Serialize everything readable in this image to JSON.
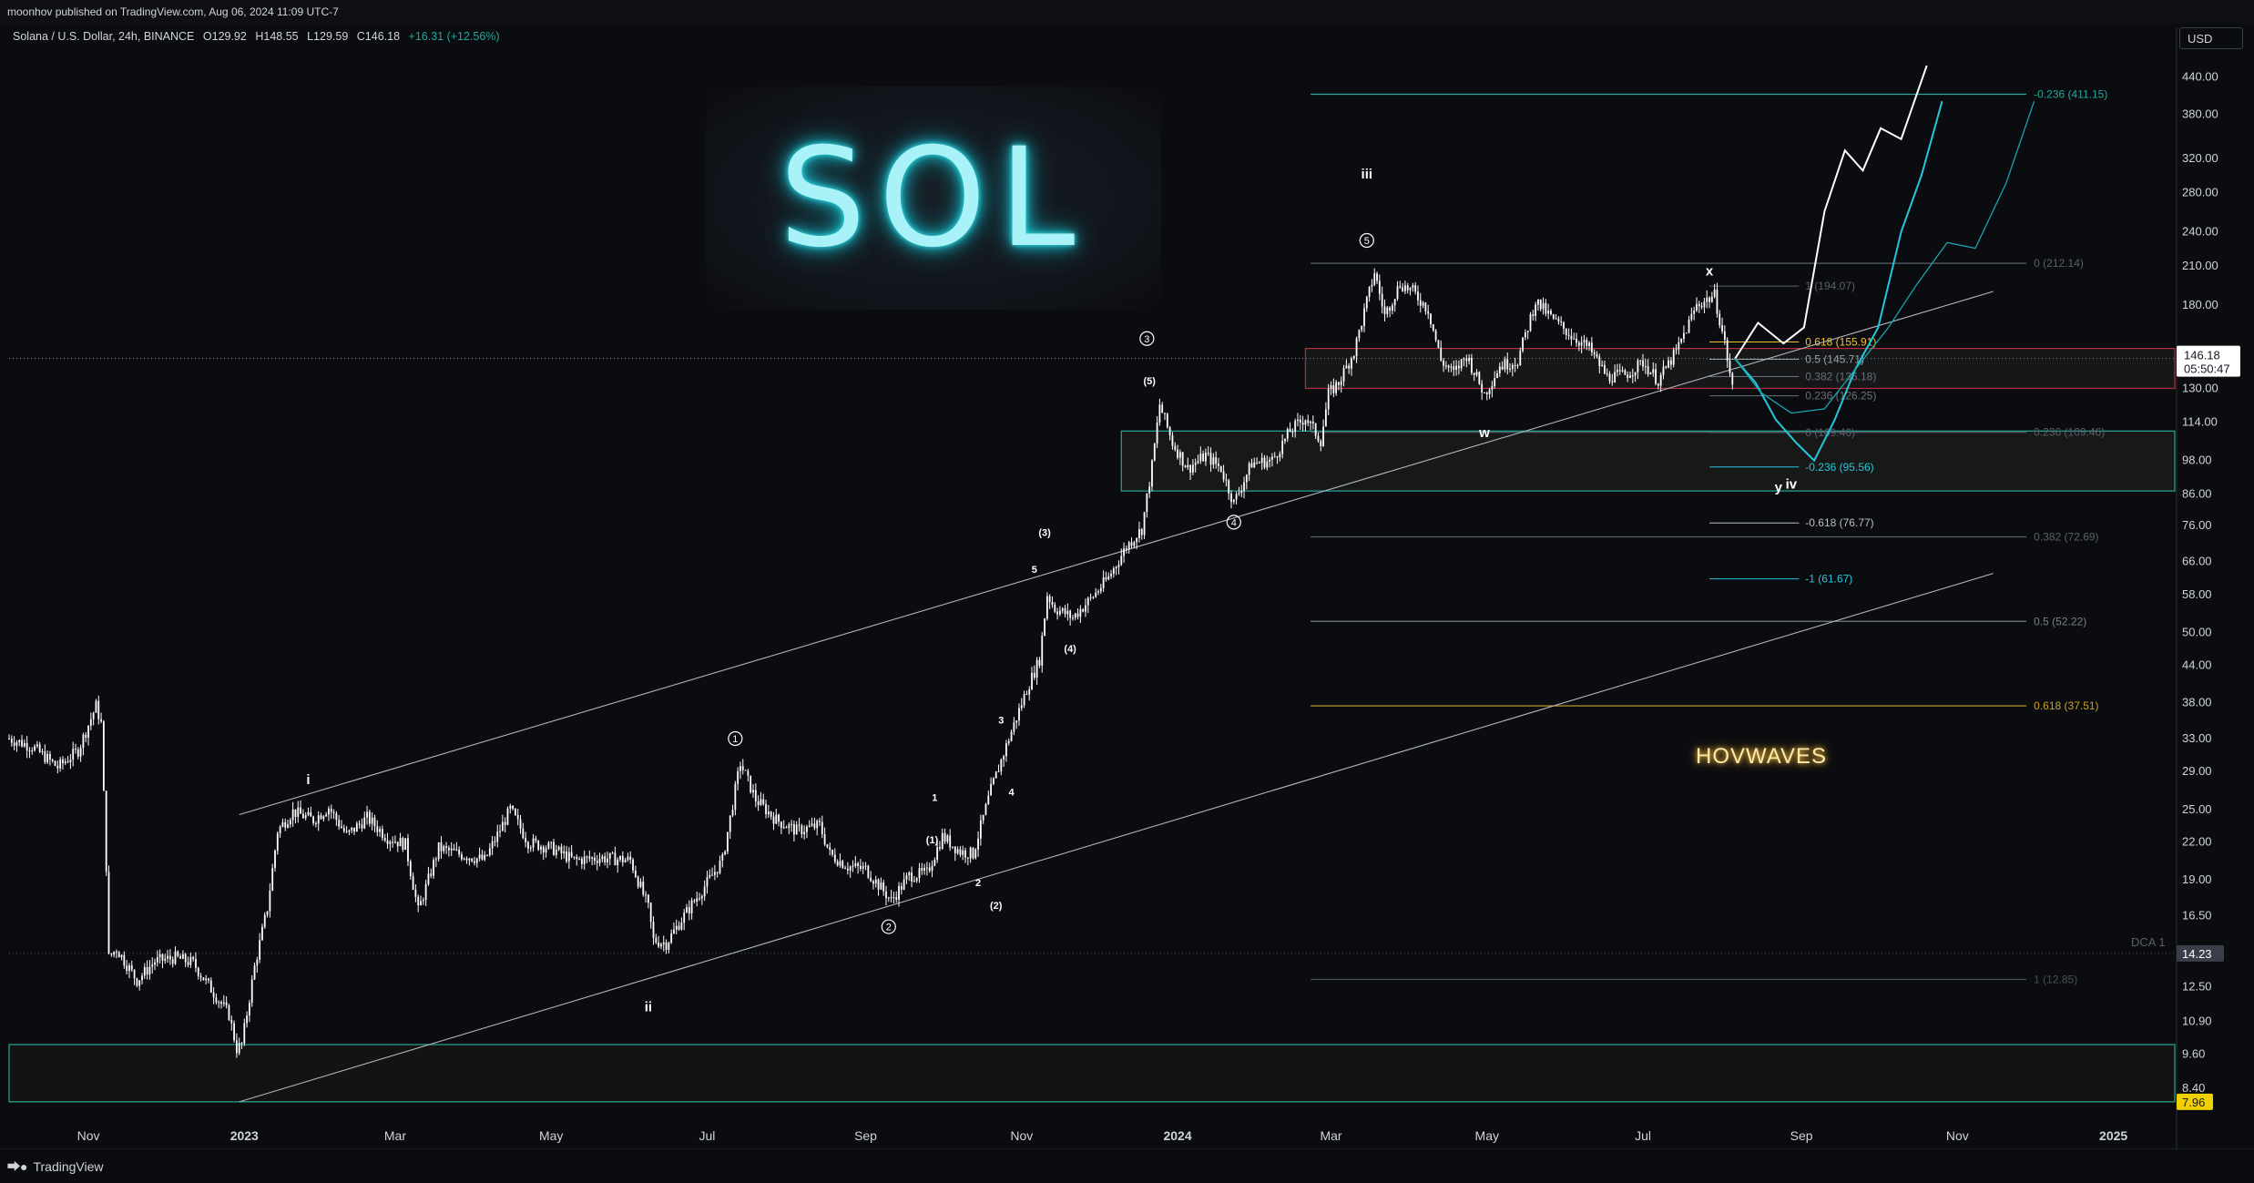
{
  "publisher": "moonhov published on TradingView.com, Aug 06, 2024 11:09 UTC-7",
  "symbol": {
    "name": "Solana / U.S. Dollar, 24h, BINANCE",
    "open": "O129.92",
    "high": "H148.55",
    "low": "L129.59",
    "close": "C146.18",
    "change": "+16.31 (+12.56%)"
  },
  "currency": "USD",
  "logo_text": "SOL",
  "watermark": "HOVWAVES",
  "footer_brand": "TradingView",
  "price_tag": {
    "value": "146.18",
    "countdown": "05:50:47"
  },
  "dca_label": "DCA 1",
  "dca_value": "14.23",
  "low_value": "7.96",
  "chart_data": {
    "type": "line",
    "scale": "log",
    "interval": "24h",
    "ylim": [
      7.2,
      470
    ],
    "xlim": [
      "2022-10-01",
      "2025-01-25"
    ],
    "yticks": [
      440,
      380,
      320,
      280,
      240,
      210,
      180,
      150,
      130,
      114,
      98,
      86,
      76,
      66,
      58,
      50,
      44,
      38,
      33,
      29,
      25,
      22,
      19,
      16.5,
      14.23,
      12.5,
      10.9,
      9.6,
      8.4
    ],
    "ytick_labels": [
      "440.00",
      "380.00",
      "320.00",
      "280.00",
      "240.00",
      "210.00",
      "180.00",
      "150.00",
      "130.00",
      "114.00",
      "98.00",
      "86.00",
      "76.00",
      "66.00",
      "58.00",
      "50.00",
      "44.00",
      "38.00",
      "33.00",
      "29.00",
      "25.00",
      "22.00",
      "19.00",
      "16.50",
      "14.23",
      "12.50",
      "10.90",
      "9.60",
      "8.40"
    ],
    "xticks": [
      {
        "date": "2022-11-01",
        "label": "Nov"
      },
      {
        "date": "2023-01-01",
        "label": "2023"
      },
      {
        "date": "2023-03-01",
        "label": "Mar"
      },
      {
        "date": "2023-05-01",
        "label": "May"
      },
      {
        "date": "2023-07-01",
        "label": "Jul"
      },
      {
        "date": "2023-09-01",
        "label": "Sep"
      },
      {
        "date": "2023-11-01",
        "label": "Nov"
      },
      {
        "date": "2024-01-01",
        "label": "2024"
      },
      {
        "date": "2024-03-01",
        "label": "Mar"
      },
      {
        "date": "2024-05-01",
        "label": "May"
      },
      {
        "date": "2024-07-01",
        "label": "Jul"
      },
      {
        "date": "2024-09-01",
        "label": "Sep"
      },
      {
        "date": "2024-11-01",
        "label": "Nov"
      },
      {
        "date": "2025-01-01",
        "label": "2025"
      }
    ],
    "price": [
      [
        "2022-10-01",
        33.0
      ],
      [
        "2022-10-10",
        32.0
      ],
      [
        "2022-10-20",
        29.5
      ],
      [
        "2022-10-28",
        31.5
      ],
      [
        "2022-11-04",
        37.5
      ],
      [
        "2022-11-06",
        35.0
      ],
      [
        "2022-11-08",
        20.0
      ],
      [
        "2022-11-09",
        14.0
      ],
      [
        "2022-11-12",
        14.5
      ],
      [
        "2022-11-20",
        12.8
      ],
      [
        "2022-11-27",
        13.8
      ],
      [
        "2022-12-05",
        14.0
      ],
      [
        "2022-12-12",
        13.7
      ],
      [
        "2022-12-20",
        12.2
      ],
      [
        "2022-12-26",
        11.2
      ],
      [
        "2022-12-29",
        9.8
      ],
      [
        "2022-12-31",
        9.96
      ],
      [
        "2023-01-05",
        13.5
      ],
      [
        "2023-01-10",
        17.0
      ],
      [
        "2023-01-14",
        23.0
      ],
      [
        "2023-01-20",
        24.8
      ],
      [
        "2023-01-28",
        24.0
      ],
      [
        "2023-02-03",
        25.2
      ],
      [
        "2023-02-10",
        22.6
      ],
      [
        "2023-02-18",
        24.2
      ],
      [
        "2023-02-26",
        22.4
      ],
      [
        "2023-03-05",
        21.8
      ],
      [
        "2023-03-10",
        16.8
      ],
      [
        "2023-03-18",
        21.5
      ],
      [
        "2023-03-26",
        21.0
      ],
      [
        "2023-04-05",
        20.5
      ],
      [
        "2023-04-15",
        25.0
      ],
      [
        "2023-04-22",
        22.0
      ],
      [
        "2023-05-01",
        21.5
      ],
      [
        "2023-05-10",
        20.5
      ],
      [
        "2023-05-20",
        20.7
      ],
      [
        "2023-06-01",
        20.5
      ],
      [
        "2023-06-08",
        17.0
      ],
      [
        "2023-06-10",
        15.0
      ],
      [
        "2023-06-15",
        14.8
      ],
      [
        "2023-06-22",
        16.5
      ],
      [
        "2023-06-30",
        18.5
      ],
      [
        "2023-07-07",
        20.5
      ],
      [
        "2023-07-12",
        27.0
      ],
      [
        "2023-07-14",
        30.0
      ],
      [
        "2023-07-20",
        26.0
      ],
      [
        "2023-07-28",
        24.0
      ],
      [
        "2023-08-05",
        23.0
      ],
      [
        "2023-08-14",
        23.5
      ],
      [
        "2023-08-18",
        21.0
      ],
      [
        "2023-08-25",
        20.0
      ],
      [
        "2023-09-01",
        19.8
      ],
      [
        "2023-09-11",
        17.5
      ],
      [
        "2023-09-18",
        19.3
      ],
      [
        "2023-09-25",
        19.5
      ],
      [
        "2023-10-01",
        22.5
      ],
      [
        "2023-10-08",
        21.2
      ],
      [
        "2023-10-13",
        21.0
      ],
      [
        "2023-10-20",
        27.0
      ],
      [
        "2023-10-27",
        33.0
      ],
      [
        "2023-11-03",
        40.0
      ],
      [
        "2023-11-08",
        45.0
      ],
      [
        "2023-11-11",
        58.0
      ],
      [
        "2023-11-14",
        55.0
      ],
      [
        "2023-11-21",
        53.0
      ],
      [
        "2023-11-28",
        57.0
      ],
      [
        "2023-12-05",
        62.0
      ],
      [
        "2023-12-12",
        70.0
      ],
      [
        "2023-12-18",
        75.0
      ],
      [
        "2023-12-22",
        96.0
      ],
      [
        "2023-12-25",
        122.0
      ],
      [
        "2023-12-30",
        105.0
      ],
      [
        "2024-01-05",
        95.0
      ],
      [
        "2024-01-12",
        100.0
      ],
      [
        "2024-01-18",
        95.0
      ],
      [
        "2024-01-23",
        83.0
      ],
      [
        "2024-01-30",
        97.0
      ],
      [
        "2024-02-07",
        98.0
      ],
      [
        "2024-02-14",
        110.0
      ],
      [
        "2024-02-20",
        116.0
      ],
      [
        "2024-02-26",
        106.0
      ],
      [
        "2024-02-29",
        127.0
      ],
      [
        "2024-03-04",
        133.0
      ],
      [
        "2024-03-10",
        150.0
      ],
      [
        "2024-03-18",
        205.0
      ],
      [
        "2024-03-22",
        173.0
      ],
      [
        "2024-03-28",
        196.0
      ],
      [
        "2024-04-02",
        190.0
      ],
      [
        "2024-04-08",
        177.0
      ],
      [
        "2024-04-13",
        145.0
      ],
      [
        "2024-04-18",
        138.0
      ],
      [
        "2024-04-23",
        148.0
      ],
      [
        "2024-04-30",
        127.0
      ],
      [
        "2024-05-06",
        142.0
      ],
      [
        "2024-05-13",
        145.0
      ],
      [
        "2024-05-20",
        183.0
      ],
      [
        "2024-05-27",
        170.0
      ],
      [
        "2024-06-03",
        160.0
      ],
      [
        "2024-06-10",
        152.0
      ],
      [
        "2024-06-17",
        136.0
      ],
      [
        "2024-06-24",
        137.0
      ],
      [
        "2024-07-01",
        144.0
      ],
      [
        "2024-07-07",
        134.0
      ],
      [
        "2024-07-14",
        150.0
      ],
      [
        "2024-07-22",
        180.0
      ],
      [
        "2024-07-29",
        187.0
      ],
      [
        "2024-08-02",
        155.0
      ],
      [
        "2024-08-05",
        129.9
      ],
      [
        "2024-08-06",
        146.18
      ]
    ],
    "projections": [
      {
        "color": "#ffffff",
        "points": [
          [
            "2024-08-06",
            146
          ],
          [
            "2024-08-15",
            168
          ],
          [
            "2024-08-25",
            155
          ],
          [
            "2024-09-02",
            165
          ],
          [
            "2024-09-10",
            260
          ],
          [
            "2024-09-18",
            330
          ],
          [
            "2024-09-25",
            305
          ],
          [
            "2024-10-02",
            360
          ],
          [
            "2024-10-10",
            345
          ],
          [
            "2024-10-20",
            460
          ]
        ]
      },
      {
        "color": "#26c6da",
        "points": [
          [
            "2024-08-06",
            146
          ],
          [
            "2024-08-14",
            133
          ],
          [
            "2024-08-22",
            115
          ],
          [
            "2024-08-30",
            105
          ],
          [
            "2024-09-06",
            98
          ],
          [
            "2024-09-14",
            115
          ],
          [
            "2024-09-22",
            140
          ],
          [
            "2024-10-01",
            165
          ],
          [
            "2024-10-10",
            240
          ],
          [
            "2024-10-18",
            300
          ],
          [
            "2024-10-26",
            400
          ]
        ]
      },
      {
        "color": "#1aa3ad",
        "points": [
          [
            "2024-08-06",
            146
          ],
          [
            "2024-08-16",
            128
          ],
          [
            "2024-08-28",
            118
          ],
          [
            "2024-09-10",
            120
          ],
          [
            "2024-09-22",
            140
          ],
          [
            "2024-10-05",
            165
          ],
          [
            "2024-10-16",
            195
          ],
          [
            "2024-10-28",
            230
          ],
          [
            "2024-11-08",
            225
          ],
          [
            "2024-11-20",
            290
          ],
          [
            "2024-12-01",
            400
          ]
        ]
      }
    ],
    "channel_lines": [
      {
        "from": [
          "2022-12-30",
          24.5
        ],
        "to": [
          "2024-11-15",
          190
        ]
      },
      {
        "from": [
          "2022-12-30",
          7.96
        ],
        "to": [
          "2024-11-15",
          63
        ]
      }
    ],
    "zones": [
      {
        "from": "2024-02-20",
        "to": "2025-01-25",
        "low": 130,
        "high": 152,
        "stroke": "#b2303d",
        "fill": "rgba(70,75,60,0.18)"
      },
      {
        "from": "2023-12-10",
        "to": "2025-01-25",
        "low": 87,
        "high": 110,
        "stroke": "#26a69a",
        "fill": "rgba(70,75,60,0.22)"
      },
      {
        "from": "2022-10-01",
        "to": "2025-01-25",
        "low": 7.96,
        "high": 9.96,
        "stroke": "#26a69a",
        "fill": "rgba(60,55,30,0.18)"
      }
    ],
    "fib_left": [
      {
        "level": "-0.236 (411.15)",
        "value": 411.15,
        "color": "#26a69a"
      },
      {
        "level": "0 (212.14)",
        "value": 212.14,
        "color": "#5b5f6a"
      },
      {
        "level": "0.236 (109.46)",
        "value": 109.46,
        "color": "#5b5f6a"
      },
      {
        "level": "0.382 (72.69)",
        "value": 72.69,
        "color": "#5b5f6a"
      },
      {
        "level": "0.5 (52.22)",
        "value": 52.22,
        "color": "#7a7e88"
      },
      {
        "level": "0.618 (37.51)",
        "value": 37.51,
        "color": "#c9a227"
      },
      {
        "level": "1 (12.85)",
        "value": 12.85,
        "color": "#4a4e58"
      }
    ],
    "fib_right": [
      {
        "level": "1 (194.07)",
        "value": 194.07,
        "color": "#5b5f6a"
      },
      {
        "level": "0.618 (155.91)",
        "value": 155.91,
        "color": "#f0c330"
      },
      {
        "level": "0.5 (145.71)",
        "value": 145.71,
        "color": "#9aa0aa"
      },
      {
        "level": "0.382 (136.18)",
        "value": 136.18,
        "color": "#6b6f7a"
      },
      {
        "level": "0.236 (126.25)",
        "value": 126.25,
        "color": "#6b6f7a"
      },
      {
        "level": "0 (109.40)",
        "value": 109.4,
        "color": "#5b5f6a"
      },
      {
        "level": "-0.236 (95.56)",
        "value": 95.56,
        "color": "#26c6da"
      },
      {
        "level": "-0.618 (76.77)",
        "value": 76.77,
        "color": "#b8bcc6"
      },
      {
        "level": "-1 (61.67)",
        "value": 61.67,
        "color": "#26c6da"
      }
    ],
    "wave_labels": [
      {
        "text": "i",
        "date": "2023-01-26",
        "price": 28.0,
        "style": "roman"
      },
      {
        "text": "ii",
        "date": "2023-06-08",
        "price": 11.5,
        "style": "roman"
      },
      {
        "text": "iii",
        "date": "2024-03-15",
        "price": 300,
        "style": "roman"
      },
      {
        "text": "iv",
        "date": "2024-08-28",
        "price": 89,
        "style": "roman"
      },
      {
        "text": "w",
        "date": "2024-04-30",
        "price": 109,
        "style": "roman"
      },
      {
        "text": "x",
        "date": "2024-07-27",
        "price": 205,
        "style": "roman"
      },
      {
        "text": "y",
        "date": "2024-08-23",
        "price": 88,
        "style": "roman"
      },
      {
        "text": "1",
        "date": "2023-07-12",
        "price": 33,
        "style": "circle"
      },
      {
        "text": "2",
        "date": "2023-09-10",
        "price": 15.8,
        "style": "circle"
      },
      {
        "text": "3",
        "date": "2023-12-20",
        "price": 158,
        "style": "circle"
      },
      {
        "text": "4",
        "date": "2024-01-23",
        "price": 77,
        "style": "circle"
      },
      {
        "text": "5",
        "date": "2024-03-15",
        "price": 232,
        "style": "circle"
      },
      {
        "text": "(1)",
        "date": "2023-09-27",
        "price": 22.2,
        "style": "plain"
      },
      {
        "text": "(2)",
        "date": "2023-10-22",
        "price": 17.2,
        "style": "plain"
      },
      {
        "text": "(3)",
        "date": "2023-11-10",
        "price": 74,
        "style": "plain"
      },
      {
        "text": "(4)",
        "date": "2023-11-20",
        "price": 47,
        "style": "plain"
      },
      {
        "text": "(5)",
        "date": "2023-12-21",
        "price": 134,
        "style": "plain"
      },
      {
        "text": "1",
        "date": "2023-09-28",
        "price": 26.2,
        "style": "plain"
      },
      {
        "text": "2",
        "date": "2023-10-15",
        "price": 18.8,
        "style": "plain"
      },
      {
        "text": "3",
        "date": "2023-10-24",
        "price": 35.5,
        "style": "plain"
      },
      {
        "text": "4",
        "date": "2023-10-28",
        "price": 26.8,
        "style": "plain"
      },
      {
        "text": "5",
        "date": "2023-11-06",
        "price": 64,
        "style": "plain"
      }
    ]
  }
}
